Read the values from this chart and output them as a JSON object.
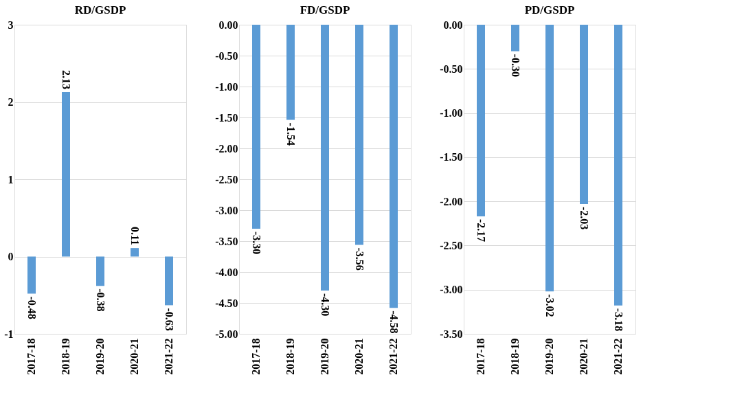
{
  "chart_data": [
    {
      "type": "bar",
      "title": "RD/GSDP",
      "categories": [
        "2017-18",
        "2018-19",
        "2019-20",
        "2020-21",
        "2021-22"
      ],
      "values": [
        -0.48,
        2.13,
        -0.38,
        0.11,
        -0.63
      ],
      "value_labels": [
        "-0.48",
        "2.13",
        "-0.38",
        "0.11",
        "-0.63"
      ],
      "color": "#5b9bd5",
      "ylim": [
        -1,
        3
      ],
      "yticks": [
        -1,
        0,
        1,
        2,
        3
      ],
      "grid": "y"
    },
    {
      "type": "bar",
      "title": "FD/GSDP",
      "categories": [
        "2017-18",
        "2018-19",
        "2019-20",
        "2020-21",
        "2021-22"
      ],
      "values": [
        -3.3,
        -1.54,
        -4.3,
        -3.56,
        -4.58
      ],
      "value_labels": [
        "-3.30",
        "-1.54",
        "-4.30",
        "-3.56",
        "-4.58"
      ],
      "color": "#5b9bd5",
      "ylim": [
        -5,
        0
      ],
      "yticks": [
        {
          "value": 0,
          "label": "0.00"
        },
        {
          "value": -0.5,
          "label": "-0.50"
        },
        {
          "value": -1,
          "label": "-1.00"
        },
        {
          "value": -1.5,
          "label": "-1.50"
        },
        {
          "value": -2,
          "label": "-2.00"
        },
        {
          "value": -2.5,
          "label": "-2.50"
        },
        {
          "value": -3,
          "label": "-3.00"
        },
        {
          "value": -3.5,
          "label": "-3.50"
        },
        {
          "value": -4,
          "label": "-4.00"
        },
        {
          "value": -4.5,
          "label": "-4.50"
        },
        {
          "value": -5,
          "label": "-5.00"
        }
      ],
      "grid": "y"
    },
    {
      "type": "bar",
      "title": "PD/GSDP",
      "categories": [
        "2017-18",
        "2018-19",
        "2019-20",
        "2020-21",
        "2021-22"
      ],
      "values": [
        -2.17,
        -0.3,
        -3.02,
        -2.03,
        -3.18
      ],
      "value_labels": [
        "-2.17",
        "-0.30",
        "-3.02",
        "-2.03",
        "-3.18"
      ],
      "color": "#5b9bd5",
      "ylim": [
        -3.5,
        0
      ],
      "yticks": [
        {
          "value": 0,
          "label": "0.00"
        },
        {
          "value": -0.5,
          "label": "-0.50"
        },
        {
          "value": -1,
          "label": "-1.00"
        },
        {
          "value": -1.5,
          "label": "-1.50"
        },
        {
          "value": -2,
          "label": "-2.00"
        },
        {
          "value": -2.5,
          "label": "-2.50"
        },
        {
          "value": -3,
          "label": "-3.00"
        },
        {
          "value": -3.5,
          "label": "-3.50"
        }
      ],
      "grid": "y"
    }
  ]
}
